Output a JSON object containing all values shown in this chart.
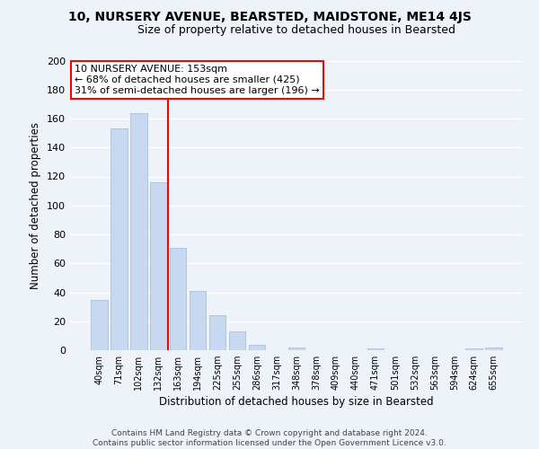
{
  "title": "10, NURSERY AVENUE, BEARSTED, MAIDSTONE, ME14 4JS",
  "subtitle": "Size of property relative to detached houses in Bearsted",
  "xlabel": "Distribution of detached houses by size in Bearsted",
  "ylabel": "Number of detached properties",
  "bar_labels": [
    "40sqm",
    "71sqm",
    "102sqm",
    "132sqm",
    "163sqm",
    "194sqm",
    "225sqm",
    "255sqm",
    "286sqm",
    "317sqm",
    "348sqm",
    "378sqm",
    "409sqm",
    "440sqm",
    "471sqm",
    "501sqm",
    "532sqm",
    "563sqm",
    "594sqm",
    "624sqm",
    "655sqm"
  ],
  "bar_values": [
    35,
    153,
    164,
    116,
    71,
    41,
    24,
    13,
    4,
    0,
    2,
    0,
    0,
    0,
    1,
    0,
    0,
    0,
    0,
    1,
    2
  ],
  "bar_color": "#c6d9f0",
  "bar_edge_color": "#a0b8d8",
  "vline_color": "red",
  "ylim": [
    0,
    200
  ],
  "yticks": [
    0,
    20,
    40,
    60,
    80,
    100,
    120,
    140,
    160,
    180,
    200
  ],
  "annotation_title": "10 NURSERY AVENUE: 153sqm",
  "annotation_line1": "← 68% of detached houses are smaller (425)",
  "annotation_line2": "31% of semi-detached houses are larger (196) →",
  "annotation_box_color": "white",
  "annotation_box_edge": "red",
  "footer1": "Contains HM Land Registry data © Crown copyright and database right 2024.",
  "footer2": "Contains public sector information licensed under the Open Government Licence v3.0.",
  "background_color": "#eef2f9",
  "grid_color": "white"
}
